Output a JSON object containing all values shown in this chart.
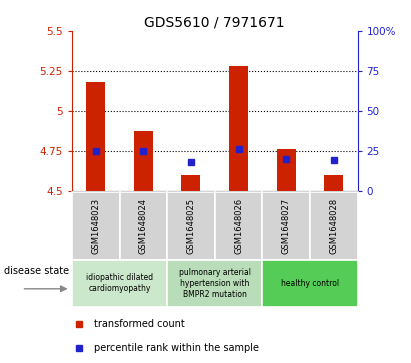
{
  "title": "GDS5610 / 7971671",
  "samples": [
    "GSM1648023",
    "GSM1648024",
    "GSM1648025",
    "GSM1648026",
    "GSM1648027",
    "GSM1648028"
  ],
  "transformed_count": [
    5.18,
    4.87,
    4.6,
    5.28,
    4.76,
    4.6
  ],
  "percentile_rank": [
    25,
    25,
    18,
    26,
    20,
    19
  ],
  "ylim_left": [
    4.5,
    5.5
  ],
  "ylim_right": [
    0,
    100
  ],
  "yticks_left": [
    4.5,
    4.75,
    5.0,
    5.25,
    5.5
  ],
  "yticks_right": [
    0,
    25,
    50,
    75,
    100
  ],
  "ytick_labels_left": [
    "4.5",
    "4.75",
    "5",
    "5.25",
    "5.5"
  ],
  "ytick_labels_right": [
    "0",
    "25",
    "50",
    "75",
    "100%"
  ],
  "gridlines": [
    4.75,
    5.0,
    5.25
  ],
  "bar_color": "#cc2200",
  "dot_color": "#2222cc",
  "bar_width": 0.4,
  "disease_groups": [
    {
      "label": "idiopathic dilated\ncardiomyopathy",
      "indices": [
        0,
        1
      ],
      "color": "#cce8cc"
    },
    {
      "label": "pulmonary arterial\nhypertension with\nBMPR2 mutation",
      "indices": [
        2,
        3
      ],
      "color": "#b8ddb8"
    },
    {
      "label": "healthy control",
      "indices": [
        4,
        5
      ],
      "color": "#55cc55"
    }
  ],
  "legend_items": [
    {
      "label": "transformed count",
      "color": "#cc2200"
    },
    {
      "label": "percentile rank within the sample",
      "color": "#2222cc"
    }
  ],
  "disease_state_label": "disease state",
  "left_tick_color": "#cc2200",
  "right_tick_color": "#2222cc"
}
